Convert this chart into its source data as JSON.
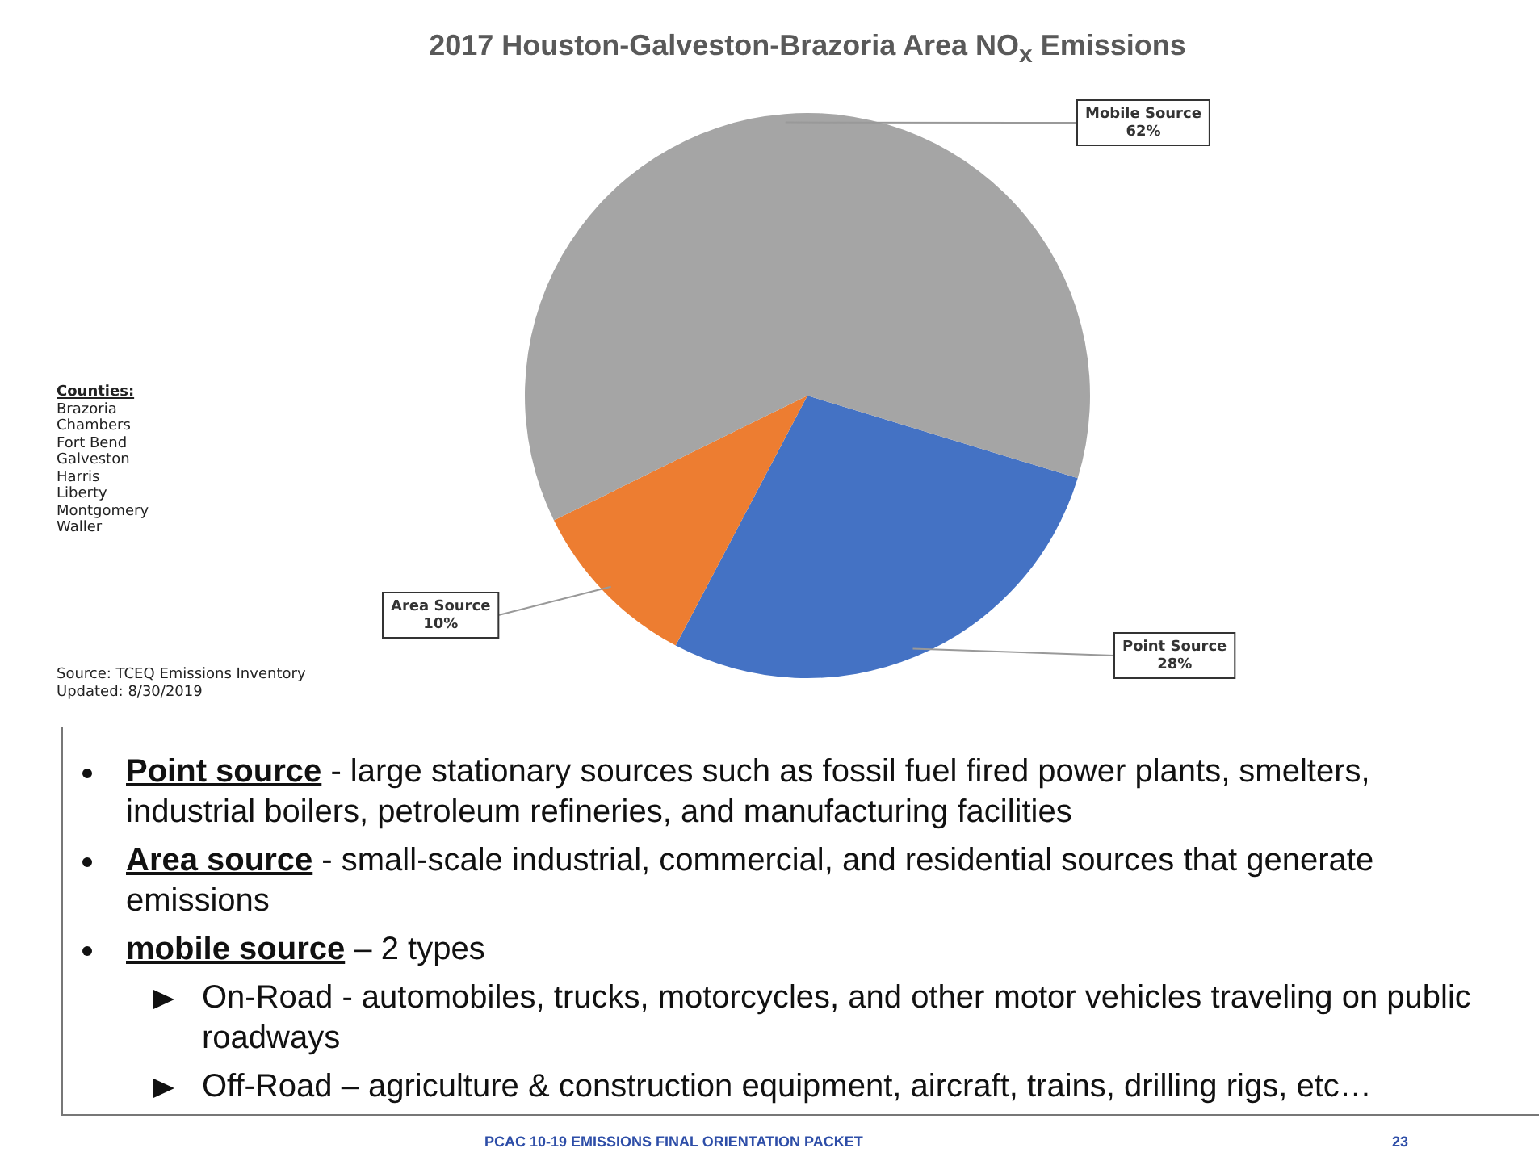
{
  "chart_data": {
    "type": "pie",
    "title": "2017 Houston-Galveston-Brazoria Area NO$_{x}$ Emissions",
    "categories": [
      "Point Source",
      "Area Source",
      "Mobile Source"
    ],
    "values": [
      28,
      10,
      62
    ],
    "colors": [
      "#4472c4",
      "#ed7d31",
      "#a5a5a5"
    ],
    "value_labels": [
      "28%",
      "10%",
      "62%"
    ],
    "legend": false,
    "annotations": [
      "Counties:\nBrazoria\nChambers\nFort Bend\nGalveston\nHarris\nLiberty\nMontgomery\nWaller",
      "Source: TCEQ Emissions Inventory\nUpdated: 8/30/2019",
      "Point source - large stationary sources such as fossil fuel fired power plants, smelters, industrial boilers, petroleum refineries, and manufacturing facilities",
      "Area source -  small-scale industrial, commercial, and residential sources that generate emissions",
      "mobile source – 2 types",
      "On-Road - automobiles, trucks, motorcycles, and other motor vehicles traveling on public roadways",
      "Off-Road – agriculture & construction equipment, aircraft, trains, drilling rigs, etc…",
      "PCAC 10-19 EMISSIONS FINAL ORIENTATION PACKET",
      "23"
    ]
  }
}
